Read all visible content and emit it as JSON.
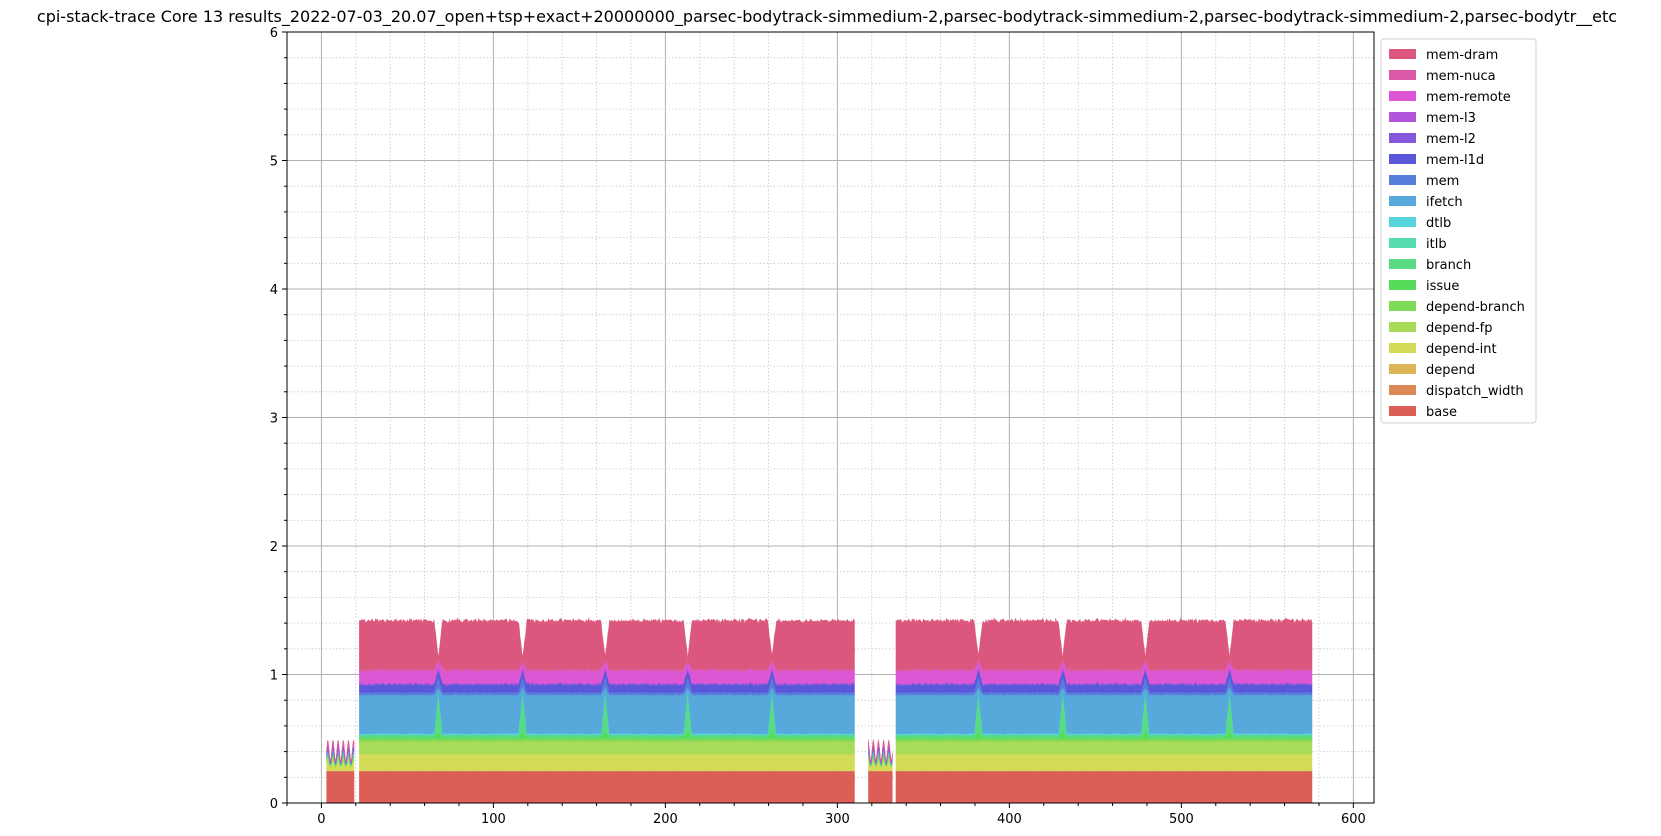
{
  "chart_data": {
    "type": "area",
    "title": "cpi-stack-trace Core 13 results_2022-07-03_20.07_open+tsp+exact+20000000_parsec-bodytrack-simmedium-2,parsec-bodytrack-simmedium-2,parsec-bodytrack-simmedium-2,parsec-bodytr__etc",
    "xlabel": "",
    "ylabel": "",
    "xlim": [
      -20,
      612
    ],
    "ylim": [
      0,
      6
    ],
    "xticks": [
      0,
      100,
      200,
      300,
      400,
      500,
      600
    ],
    "yticks": [
      0,
      1,
      2,
      3,
      4,
      5,
      6
    ],
    "grid": true,
    "minor_grid": true,
    "legend_position": "right",
    "segments": [
      {
        "start": 3,
        "end": 19,
        "kind": "init"
      },
      {
        "start": 22,
        "end": 310,
        "kind": "main",
        "dips": [
          68,
          117,
          165,
          213,
          262
        ]
      },
      {
        "start": 318,
        "end": 332,
        "kind": "init"
      },
      {
        "start": 334,
        "end": 576,
        "kind": "main",
        "dips": [
          382,
          431,
          479,
          528
        ]
      }
    ],
    "series_main": [
      {
        "name": "base",
        "value": 0.25,
        "color": "#db5f57"
      },
      {
        "name": "dispatch_width",
        "value": 0.0,
        "color": "#db8a57"
      },
      {
        "name": "depend",
        "value": 0.0,
        "color": "#dbb557"
      },
      {
        "name": "depend-int",
        "value": 0.13,
        "color": "#d3db57"
      },
      {
        "name": "depend-fp",
        "value": 0.1,
        "color": "#a8db57"
      },
      {
        "name": "depend-branch",
        "value": 0.02,
        "color": "#7ddb57"
      },
      {
        "name": "issue",
        "value": 0.01,
        "color": "#57db5a"
      },
      {
        "name": "branch",
        "value": 0.02,
        "color": "#57db85"
      },
      {
        "name": "itlb",
        "value": 0.0,
        "color": "#57dbb0"
      },
      {
        "name": "dtlb",
        "value": 0.01,
        "color": "#57d3db"
      },
      {
        "name": "ifetch",
        "value": 0.3,
        "color": "#57a8db"
      },
      {
        "name": "mem",
        "value": 0.02,
        "color": "#577ddb"
      },
      {
        "name": "mem-l1d",
        "value": 0.06,
        "color": "#5a57db"
      },
      {
        "name": "mem-l2",
        "value": 0.01,
        "color": "#8557db"
      },
      {
        "name": "mem-l3",
        "value": 0.0,
        "color": "#b057db"
      },
      {
        "name": "mem-remote",
        "value": 0.1,
        "color": "#db57d3"
      },
      {
        "name": "mem-nuca",
        "value": 0.01,
        "color": "#db57a8"
      },
      {
        "name": "mem-dram",
        "value": 0.38,
        "color": "#db577d"
      }
    ],
    "series_init": [
      {
        "name": "base",
        "value": 0.25
      },
      {
        "name": "depend-int",
        "value": 0.06
      },
      {
        "name": "depend-fp",
        "value": 0.03
      },
      {
        "name": "branch",
        "value": 0.02
      },
      {
        "name": "ifetch",
        "value": 0.02
      },
      {
        "name": "mem-l1d",
        "value": 0.02
      },
      {
        "name": "mem-remote",
        "value": 0.02
      },
      {
        "name": "mem-dram",
        "value": 0.02
      }
    ],
    "legend": [
      "mem-dram",
      "mem-nuca",
      "mem-remote",
      "mem-l3",
      "mem-l2",
      "mem-l1d",
      "mem",
      "ifetch",
      "dtlb",
      "itlb",
      "branch",
      "issue",
      "depend-branch",
      "depend-fp",
      "depend-int",
      "depend",
      "dispatch_width",
      "base"
    ]
  }
}
